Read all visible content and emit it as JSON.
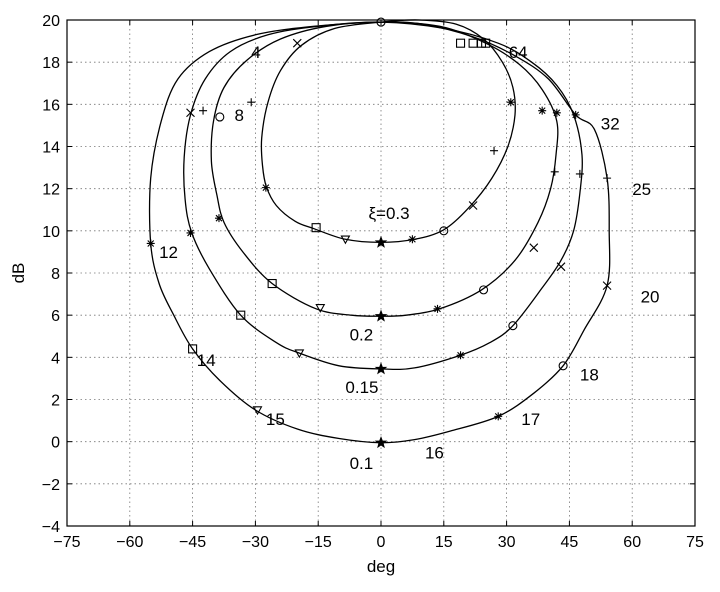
{
  "chart_data": {
    "type": "line",
    "title": "",
    "xlabel": "deg",
    "ylabel": "dB",
    "xlim": [
      -75,
      75
    ],
    "ylim": [
      -4,
      20
    ],
    "xticks": [
      -75,
      -60,
      -45,
      -30,
      -15,
      0,
      15,
      30,
      45,
      60,
      75
    ],
    "yticks": [
      -4,
      -2,
      0,
      2,
      4,
      6,
      8,
      10,
      12,
      14,
      16,
      18,
      20
    ],
    "grid": true,
    "series": [
      {
        "name": "ξ=0.3",
        "points": [
          [
            0,
            19.9
          ],
          [
            -11,
            19.6
          ],
          [
            -19,
            18.8
          ],
          [
            -24,
            17.6
          ],
          [
            -27,
            16.1
          ],
          [
            -28.5,
            14.4
          ],
          [
            -28.3,
            13.1
          ],
          [
            -27.4,
            12.1
          ],
          [
            -25,
            11.2
          ],
          [
            -20.5,
            10.45
          ],
          [
            -16,
            10.1
          ],
          [
            -8.5,
            9.6
          ],
          [
            0,
            9.45
          ],
          [
            8,
            9.6
          ],
          [
            15,
            10.05
          ],
          [
            21,
            11.1
          ],
          [
            26.5,
            12.5
          ],
          [
            30.3,
            14.0
          ],
          [
            32,
            15.5
          ],
          [
            31.5,
            16.8
          ],
          [
            29,
            18.0
          ],
          [
            24.5,
            19.1
          ],
          [
            18,
            19.8
          ],
          [
            9,
            20.0
          ],
          [
            0,
            19.9
          ]
        ]
      },
      {
        "name": "0.2",
        "points": [
          [
            0,
            19.9
          ],
          [
            -13,
            19.7
          ],
          [
            -24,
            19.1
          ],
          [
            -32,
            18.1
          ],
          [
            -37.5,
            16.8
          ],
          [
            -40,
            15.2
          ],
          [
            -40.5,
            13.3
          ],
          [
            -39.2,
            11.7
          ],
          [
            -37.5,
            10.4
          ],
          [
            -33,
            9.0
          ],
          [
            -26,
            7.5
          ],
          [
            -15.5,
            6.3
          ],
          [
            -7,
            6.0
          ],
          [
            0,
            5.95
          ],
          [
            6,
            6.0
          ],
          [
            14,
            6.3
          ],
          [
            24,
            7.2
          ],
          [
            32,
            8.6
          ],
          [
            37.5,
            10.4
          ],
          [
            40.5,
            12.0
          ],
          [
            41.8,
            13.6
          ],
          [
            42,
            15.2
          ],
          [
            38.5,
            16.7
          ],
          [
            33,
            17.9
          ],
          [
            25,
            18.9
          ],
          [
            14,
            19.7
          ],
          [
            0,
            19.9
          ]
        ]
      },
      {
        "name": "0.15",
        "points": [
          [
            0,
            19.9
          ],
          [
            -15,
            19.7
          ],
          [
            -27,
            19.3
          ],
          [
            -36,
            18.5
          ],
          [
            -42,
            17.2
          ],
          [
            -45.5,
            15.5
          ],
          [
            -47,
            13.5
          ],
          [
            -46.8,
            11.5
          ],
          [
            -45.2,
            9.9
          ],
          [
            -41,
            8.2
          ],
          [
            -33.5,
            6.0
          ],
          [
            -25,
            4.7
          ],
          [
            -19.5,
            4.2
          ],
          [
            -10,
            3.6
          ],
          [
            0,
            3.45
          ],
          [
            8,
            3.5
          ],
          [
            19,
            4.1
          ],
          [
            26,
            4.7
          ],
          [
            31.5,
            5.5
          ],
          [
            38.5,
            7.3
          ],
          [
            43,
            8.6
          ],
          [
            46,
            10.0
          ],
          [
            47.5,
            11.8
          ],
          [
            48,
            13.6
          ],
          [
            46,
            15.5
          ],
          [
            42,
            16.9
          ],
          [
            36,
            18.0
          ],
          [
            28,
            18.9
          ],
          [
            15,
            19.6
          ],
          [
            0,
            19.9
          ]
        ]
      },
      {
        "name": "0.1",
        "points": [
          [
            0,
            19.9
          ],
          [
            -16,
            19.7
          ],
          [
            -30,
            19.3
          ],
          [
            -41,
            18.5
          ],
          [
            -48.5,
            17.2
          ],
          [
            -52.5,
            15.2
          ],
          [
            -55,
            12.5
          ],
          [
            -55,
            9.4
          ],
          [
            -53,
            7.5
          ],
          [
            -49.5,
            6.0
          ],
          [
            -45,
            4.4
          ],
          [
            -38.5,
            2.9
          ],
          [
            -30,
            1.5
          ],
          [
            -20,
            0.6
          ],
          [
            -10,
            0.15
          ],
          [
            0,
            -0.05
          ],
          [
            8,
            0.1
          ],
          [
            16.5,
            0.5
          ],
          [
            28,
            1.2
          ],
          [
            36.5,
            2.3
          ],
          [
            43.5,
            3.6
          ],
          [
            48.5,
            5.3
          ],
          [
            54,
            7.4
          ],
          [
            54.5,
            10.0
          ],
          [
            54,
            12.5
          ],
          [
            51,
            14.8
          ],
          [
            46.5,
            15.5
          ],
          [
            40,
            17.2
          ],
          [
            32,
            18.3
          ],
          [
            22,
            19.2
          ],
          [
            10,
            19.8
          ],
          [
            0,
            19.9
          ]
        ]
      }
    ],
    "markers": [
      {
        "symbol": "o",
        "x": 0,
        "y": 19.9
      },
      {
        "symbol": "x",
        "x": -20,
        "y": 18.9
      },
      {
        "symbol": "*",
        "x": -27.5,
        "y": 12.05
      },
      {
        "symbol": "s",
        "x": -15.5,
        "y": 10.15
      },
      {
        "symbol": "v",
        "x": -8.5,
        "y": 9.6
      },
      {
        "symbol": "p",
        "x": 0,
        "y": 9.45
      },
      {
        "symbol": "*",
        "x": 7.5,
        "y": 9.6
      },
      {
        "symbol": "o",
        "x": 15,
        "y": 10.0
      },
      {
        "symbol": "x",
        "x": 22,
        "y": 11.2
      },
      {
        "symbol": "+",
        "x": 27,
        "y": 13.8
      },
      {
        "symbol": "*",
        "x": 31,
        "y": 16.1
      },
      {
        "symbol": "s",
        "x": 19,
        "y": 18.9
      },
      {
        "symbol": "+",
        "x": -31,
        "y": 16.1
      },
      {
        "symbol": "*",
        "x": -38.7,
        "y": 10.6
      },
      {
        "symbol": "s",
        "x": -26,
        "y": 7.5
      },
      {
        "symbol": "v",
        "x": -14.5,
        "y": 6.35
      },
      {
        "symbol": "p",
        "x": 0,
        "y": 5.95
      },
      {
        "symbol": "*",
        "x": 13.5,
        "y": 6.3
      },
      {
        "symbol": "o",
        "x": 24.5,
        "y": 7.2
      },
      {
        "symbol": "x",
        "x": 36.5,
        "y": 9.2
      },
      {
        "symbol": "+",
        "x": 41.5,
        "y": 12.8
      },
      {
        "symbol": "*",
        "x": 38.5,
        "y": 15.7
      },
      {
        "symbol": "s",
        "x": 22,
        "y": 18.9
      },
      {
        "symbol": "o",
        "x": -38.5,
        "y": 15.4
      },
      {
        "symbol": "*",
        "x": -45.5,
        "y": 9.9
      },
      {
        "symbol": "s",
        "x": -33.5,
        "y": 6.0
      },
      {
        "symbol": "v",
        "x": -19.5,
        "y": 4.2
      },
      {
        "symbol": "p",
        "x": 0,
        "y": 3.45
      },
      {
        "symbol": "*",
        "x": 19,
        "y": 4.1
      },
      {
        "symbol": "o",
        "x": 31.5,
        "y": 5.5
      },
      {
        "symbol": "x",
        "x": 43,
        "y": 8.3
      },
      {
        "symbol": "+",
        "x": 47.5,
        "y": 12.7
      },
      {
        "symbol": "*",
        "x": 42,
        "y": 15.6
      },
      {
        "symbol": "s",
        "x": 24,
        "y": 18.9
      },
      {
        "symbol": "+",
        "x": -42.5,
        "y": 15.7
      },
      {
        "symbol": "*",
        "x": -55,
        "y": 9.4
      },
      {
        "symbol": "s",
        "x": -45,
        "y": 4.4
      },
      {
        "symbol": "v",
        "x": -29.5,
        "y": 1.5
      },
      {
        "symbol": "p",
        "x": 0,
        "y": -0.05
      },
      {
        "symbol": "*",
        "x": 28,
        "y": 1.2
      },
      {
        "symbol": "o",
        "x": 43.5,
        "y": 3.6
      },
      {
        "symbol": "x",
        "x": 54,
        "y": 7.4
      },
      {
        "symbol": "+",
        "x": 54,
        "y": 12.5
      },
      {
        "symbol": "*",
        "x": 46.5,
        "y": 15.5
      },
      {
        "symbol": "s",
        "x": 25,
        "y": 18.9
      },
      {
        "symbol": "x",
        "x": -45.5,
        "y": 15.6
      }
    ],
    "annotations": [
      {
        "text": "ξ=0.3",
        "x": -3,
        "y": 10.55
      },
      {
        "text": "0.2",
        "x": -7.5,
        "y": 4.8
      },
      {
        "text": "0.15",
        "x": -8.5,
        "y": 2.3
      },
      {
        "text": "0.1",
        "x": -7.5,
        "y": -1.3
      },
      {
        "text": "4",
        "x": -31,
        "y": 18.2
      },
      {
        "text": "8",
        "x": -35,
        "y": 15.2
      },
      {
        "text": "12",
        "x": -53,
        "y": 8.7
      },
      {
        "text": "14",
        "x": -44,
        "y": 3.6
      },
      {
        "text": "15",
        "x": -27.5,
        "y": 0.8
      },
      {
        "text": "16",
        "x": 10.5,
        "y": -0.8
      },
      {
        "text": "17",
        "x": 33.5,
        "y": 0.8
      },
      {
        "text": "18",
        "x": 47.5,
        "y": 2.9
      },
      {
        "text": "20",
        "x": 62,
        "y": 6.6
      },
      {
        "text": "25",
        "x": 60,
        "y": 11.7
      },
      {
        "text": "32",
        "x": 52.5,
        "y": 14.8
      },
      {
        "text": "64",
        "x": 30.5,
        "y": 18.2
      }
    ]
  }
}
